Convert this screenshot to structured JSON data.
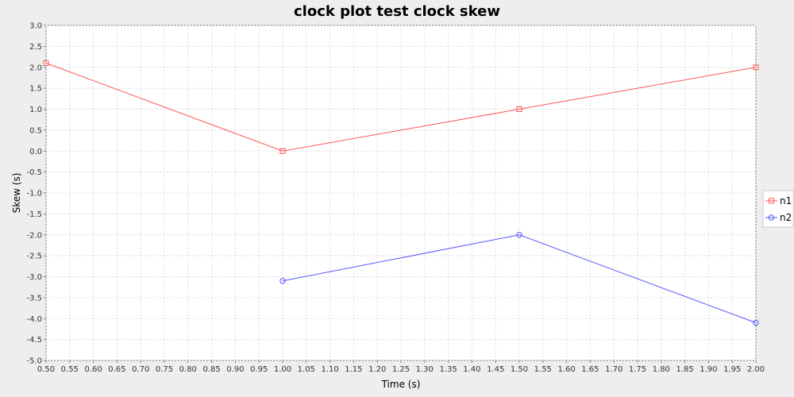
{
  "chart_data": {
    "type": "line",
    "title": "clock plot test clock skew",
    "xlabel": "Time (s)",
    "ylabel": "Skew (s)",
    "xlim": [
      0.5,
      2.0
    ],
    "ylim": [
      -5.0,
      3.0
    ],
    "x_ticks": [
      "0.50",
      "0.55",
      "0.60",
      "0.65",
      "0.70",
      "0.75",
      "0.80",
      "0.85",
      "0.90",
      "0.95",
      "1.00",
      "1.05",
      "1.10",
      "1.15",
      "1.20",
      "1.25",
      "1.30",
      "1.35",
      "1.40",
      "1.45",
      "1.50",
      "1.55",
      "1.60",
      "1.65",
      "1.70",
      "1.75",
      "1.80",
      "1.85",
      "1.90",
      "1.95",
      "2.00"
    ],
    "y_ticks": [
      "3.0",
      "2.5",
      "2.0",
      "1.5",
      "1.0",
      "0.5",
      "0.0",
      "-0.5",
      "-1.0",
      "-1.5",
      "-2.0",
      "-2.5",
      "-3.0",
      "-3.5",
      "-4.0",
      "-4.5",
      "-5.0"
    ],
    "grid": true,
    "legend_position": "right",
    "series": [
      {
        "name": "n1",
        "color": "#ff5555",
        "marker": "square",
        "x": [
          0.5,
          1.0,
          1.5,
          2.0
        ],
        "y": [
          2.1,
          0.0,
          1.0,
          2.0
        ]
      },
      {
        "name": "n2",
        "color": "#5555ff",
        "marker": "circle",
        "x": [
          1.0,
          1.5,
          2.0
        ],
        "y": [
          -3.1,
          -2.0,
          -4.1
        ]
      }
    ]
  }
}
